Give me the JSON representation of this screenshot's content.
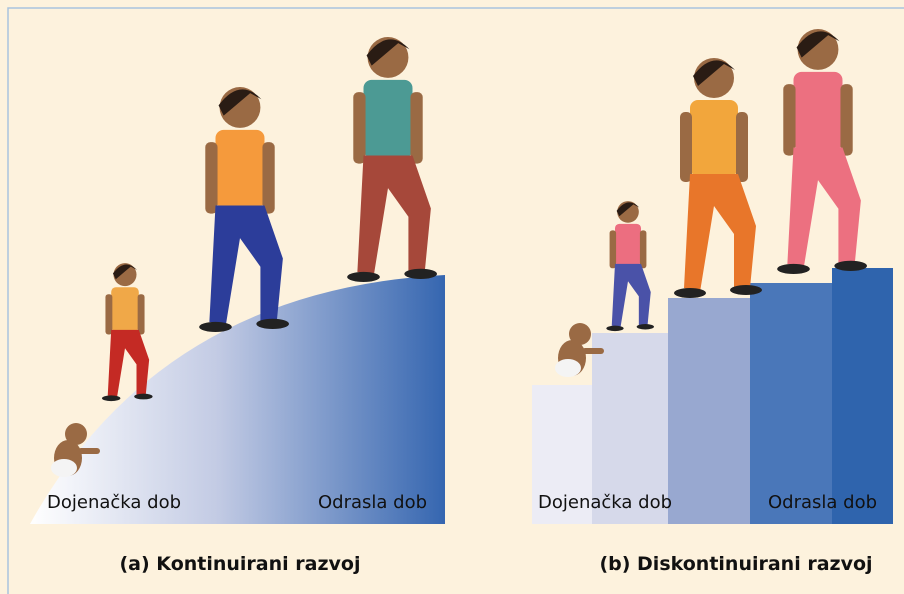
{
  "panels": [
    {
      "start_label": "Dojenačka dob",
      "end_label": "Odrasla dob",
      "caption": "(a) Kontinuirani razvoj"
    },
    {
      "start_label": "Dojenačka dob",
      "end_label": "Odrasla dob",
      "caption": "(b) Diskontinuirani razvoj"
    }
  ]
}
